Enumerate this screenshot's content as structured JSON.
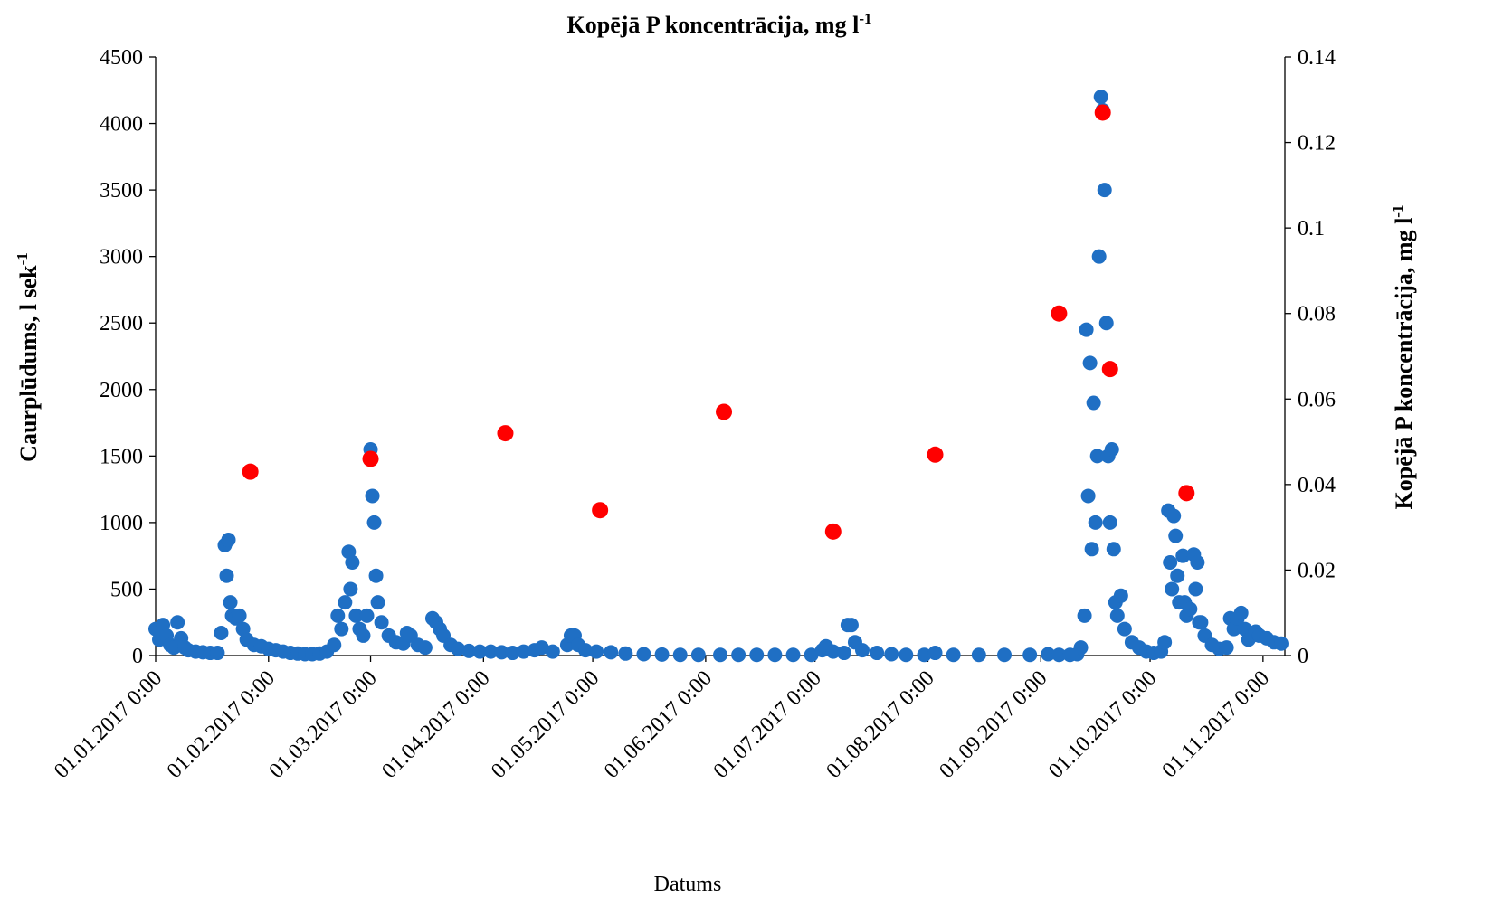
{
  "chart_data": {
    "type": "scatter",
    "title": "Kopējā P koncentrācija, mg l",
    "title_sup": "-1",
    "x_label": "Datums",
    "y_label": "Caurplūdums, l sek",
    "y_label_sup": "-1",
    "y2_label": "Kopējā P koncentrācija, mg l",
    "y2_label_sup": "-1",
    "xlim": [
      "2017-01-01T00:00",
      "2017-11-07T00:00"
    ],
    "xticks": [
      {
        "value": "2017-01-01T00:00",
        "label": "01.01.2017 0:00"
      },
      {
        "value": "2017-02-01T00:00",
        "label": "01.02.2017 0:00"
      },
      {
        "value": "2017-03-01T00:00",
        "label": "01.03.2017 0:00"
      },
      {
        "value": "2017-04-01T00:00",
        "label": "01.04.2017 0:00"
      },
      {
        "value": "2017-05-01T00:00",
        "label": "01.05.2017 0:00"
      },
      {
        "value": "2017-06-01T00:00",
        "label": "01.06.2017 0:00"
      },
      {
        "value": "2017-07-01T00:00",
        "label": "01.07.2017 0:00"
      },
      {
        "value": "2017-08-01T00:00",
        "label": "01.08.2017 0:00"
      },
      {
        "value": "2017-09-01T00:00",
        "label": "01.09.2017 0:00"
      },
      {
        "value": "2017-10-01T00:00",
        "label": "01.10.2017 0:00"
      },
      {
        "value": "2017-11-01T00:00",
        "label": "01.11.2017 0:00"
      }
    ],
    "ylim": [
      0,
      4500
    ],
    "yticks": [
      0,
      500,
      1000,
      1500,
      2000,
      2500,
      3000,
      3500,
      4000,
      4500
    ],
    "y2lim": [
      0,
      0.14
    ],
    "y2ticks": [
      0,
      0.02,
      0.04,
      0.06,
      0.08,
      0.1,
      0.12,
      0.14
    ],
    "grid": false,
    "series": [
      {
        "color": "#1f6fc4",
        "x": [
          "2017-01-01T00:00",
          "2017-01-02T00:00",
          "2017-01-03T00:00",
          "2017-01-04T00:00",
          "2017-01-05T00:00",
          "2017-01-06T00:00",
          "2017-01-07T00:00",
          "2017-01-08T00:00",
          "2017-01-09T00:00",
          "2017-01-10T00:00",
          "2017-01-12T00:00",
          "2017-01-14T00:00",
          "2017-01-16T00:00",
          "2017-01-18T00:00",
          "2017-01-19T00:00",
          "2017-01-20T00:00",
          "2017-01-20T12:00",
          "2017-01-21T00:00",
          "2017-01-21T12:00",
          "2017-01-22T00:00",
          "2017-01-23T00:00",
          "2017-01-24T00:00",
          "2017-01-25T00:00",
          "2017-01-26T00:00",
          "2017-01-28T00:00",
          "2017-01-30T00:00",
          "2017-02-01T00:00",
          "2017-02-03T00:00",
          "2017-02-05T00:00",
          "2017-02-07T00:00",
          "2017-02-09T00:00",
          "2017-02-11T00:00",
          "2017-02-13T00:00",
          "2017-02-15T00:00",
          "2017-02-17T00:00",
          "2017-02-19T00:00",
          "2017-02-20T00:00",
          "2017-02-21T00:00",
          "2017-02-22T00:00",
          "2017-02-23T00:00",
          "2017-02-23T12:00",
          "2017-02-24T00:00",
          "2017-02-25T00:00",
          "2017-02-26T00:00",
          "2017-02-27T00:00",
          "2017-02-28T00:00",
          "2017-03-01T00:00",
          "2017-03-01T12:00",
          "2017-03-02T00:00",
          "2017-03-02T12:00",
          "2017-03-03T00:00",
          "2017-03-04T00:00",
          "2017-03-06T00:00",
          "2017-03-08T00:00",
          "2017-03-10T00:00",
          "2017-03-11T00:00",
          "2017-03-12T00:00",
          "2017-03-14T00:00",
          "2017-03-16T00:00",
          "2017-03-18T00:00",
          "2017-03-19T00:00",
          "2017-03-20T00:00",
          "2017-03-21T00:00",
          "2017-03-23T00:00",
          "2017-03-25T00:00",
          "2017-03-28T00:00",
          "2017-03-31T00:00",
          "2017-04-03T00:00",
          "2017-04-06T00:00",
          "2017-04-09T00:00",
          "2017-04-12T00:00",
          "2017-04-15T00:00",
          "2017-04-17T00:00",
          "2017-04-20T00:00",
          "2017-04-24T00:00",
          "2017-04-25T00:00",
          "2017-04-26T00:00",
          "2017-04-27T00:00",
          "2017-04-29T00:00",
          "2017-05-02T00:00",
          "2017-05-06T00:00",
          "2017-05-10T00:00",
          "2017-05-15T00:00",
          "2017-05-20T00:00",
          "2017-05-25T00:00",
          "2017-05-30T00:00",
          "2017-06-05T00:00",
          "2017-06-10T00:00",
          "2017-06-15T00:00",
          "2017-06-20T00:00",
          "2017-06-25T00:00",
          "2017-06-30T00:00",
          "2017-07-03T00:00",
          "2017-07-04T00:00",
          "2017-07-06T00:00",
          "2017-07-09T00:00",
          "2017-07-10T00:00",
          "2017-07-11T00:00",
          "2017-07-12T00:00",
          "2017-07-14T00:00",
          "2017-07-18T00:00",
          "2017-07-22T00:00",
          "2017-07-26T00:00",
          "2017-07-31T00:00",
          "2017-08-03T00:00",
          "2017-08-08T00:00",
          "2017-08-15T00:00",
          "2017-08-22T00:00",
          "2017-08-29T00:00",
          "2017-09-03T00:00",
          "2017-09-06T00:00",
          "2017-09-09T00:00",
          "2017-09-11T00:00",
          "2017-09-12T00:00",
          "2017-09-13T00:00",
          "2017-09-13T12:00",
          "2017-09-14T00:00",
          "2017-09-14T12:00",
          "2017-09-15T00:00",
          "2017-09-15T12:00",
          "2017-09-16T00:00",
          "2017-09-16T12:00",
          "2017-09-17T00:00",
          "2017-09-17T12:00",
          "2017-09-18T00:00",
          "2017-09-18T12:00",
          "2017-09-19T00:00",
          "2017-09-19T12:00",
          "2017-09-20T00:00",
          "2017-09-20T12:00",
          "2017-09-21T00:00",
          "2017-09-21T12:00",
          "2017-09-22T00:00",
          "2017-09-23T00:00",
          "2017-09-24T00:00",
          "2017-09-26T00:00",
          "2017-09-28T00:00",
          "2017-09-30T00:00",
          "2017-10-02T00:00",
          "2017-10-04T00:00",
          "2017-10-05T00:00",
          "2017-10-06T00:00",
          "2017-10-06T12:00",
          "2017-10-07T00:00",
          "2017-10-07T12:00",
          "2017-10-08T00:00",
          "2017-10-08T12:00",
          "2017-10-09T00:00",
          "2017-10-10T00:00",
          "2017-10-10T12:00",
          "2017-10-11T00:00",
          "2017-10-12T00:00",
          "2017-10-13T00:00",
          "2017-10-13T12:00",
          "2017-10-14T00:00",
          "2017-10-14T12:00",
          "2017-10-15T00:00",
          "2017-10-16T00:00",
          "2017-10-18T00:00",
          "2017-10-20T00:00",
          "2017-10-22T00:00",
          "2017-10-23T00:00",
          "2017-10-24T00:00",
          "2017-10-25T00:00",
          "2017-10-26T00:00",
          "2017-10-27T00:00",
          "2017-10-28T00:00",
          "2017-10-29T00:00",
          "2017-10-30T00:00",
          "2017-10-31T00:00",
          "2017-11-02T00:00",
          "2017-11-04T00:00",
          "2017-11-06T00:00"
        ],
        "values": [
          200,
          120,
          230,
          150,
          80,
          60,
          250,
          130,
          60,
          40,
          30,
          25,
          20,
          20,
          170,
          830,
          600,
          870,
          400,
          300,
          280,
          300,
          200,
          120,
          80,
          70,
          50,
          40,
          30,
          20,
          15,
          10,
          10,
          15,
          30,
          80,
          300,
          200,
          400,
          780,
          500,
          700,
          300,
          200,
          150,
          300,
          1550,
          1200,
          1000,
          600,
          400,
          250,
          150,
          100,
          90,
          170,
          150,
          80,
          60,
          280,
          250,
          200,
          150,
          80,
          50,
          35,
          30,
          30,
          25,
          20,
          30,
          40,
          60,
          30,
          80,
          150,
          150,
          80,
          40,
          30,
          25,
          15,
          10,
          8,
          5,
          5,
          5,
          5,
          5,
          5,
          5,
          5,
          40,
          70,
          30,
          20,
          230,
          230,
          100,
          40,
          20,
          10,
          5,
          5,
          20,
          5,
          5,
          5,
          5,
          10,
          5,
          5,
          10,
          60,
          300,
          2450,
          1200,
          2200,
          800,
          1900,
          1000,
          1500,
          3000,
          4200,
          4100,
          3500,
          2500,
          1500,
          1000,
          1550,
          800,
          400,
          300,
          450,
          200,
          100,
          60,
          30,
          20,
          30,
          100,
          1090,
          700,
          500,
          1050,
          900,
          600,
          400,
          750,
          400,
          300,
          350,
          760,
          500,
          700,
          250,
          250,
          150,
          80,
          50,
          60,
          280,
          200,
          280,
          320,
          200,
          120,
          150,
          180,
          150,
          130,
          100,
          90
        ]
      },
      {
        "color": "#ff0000",
        "axis": "y2",
        "x": [
          "2017-01-27T00:00",
          "2017-03-01T00:00",
          "2017-04-07T00:00",
          "2017-05-03T00:00",
          "2017-06-06T00:00",
          "2017-07-06T00:00",
          "2017-08-03T00:00",
          "2017-09-06T00:00",
          "2017-09-18T00:00",
          "2017-09-20T00:00",
          "2017-10-11T00:00"
        ],
        "values": [
          0.043,
          0.046,
          0.052,
          0.034,
          0.057,
          0.029,
          0.047,
          0.08,
          0.127,
          0.067,
          0.038
        ]
      }
    ]
  }
}
